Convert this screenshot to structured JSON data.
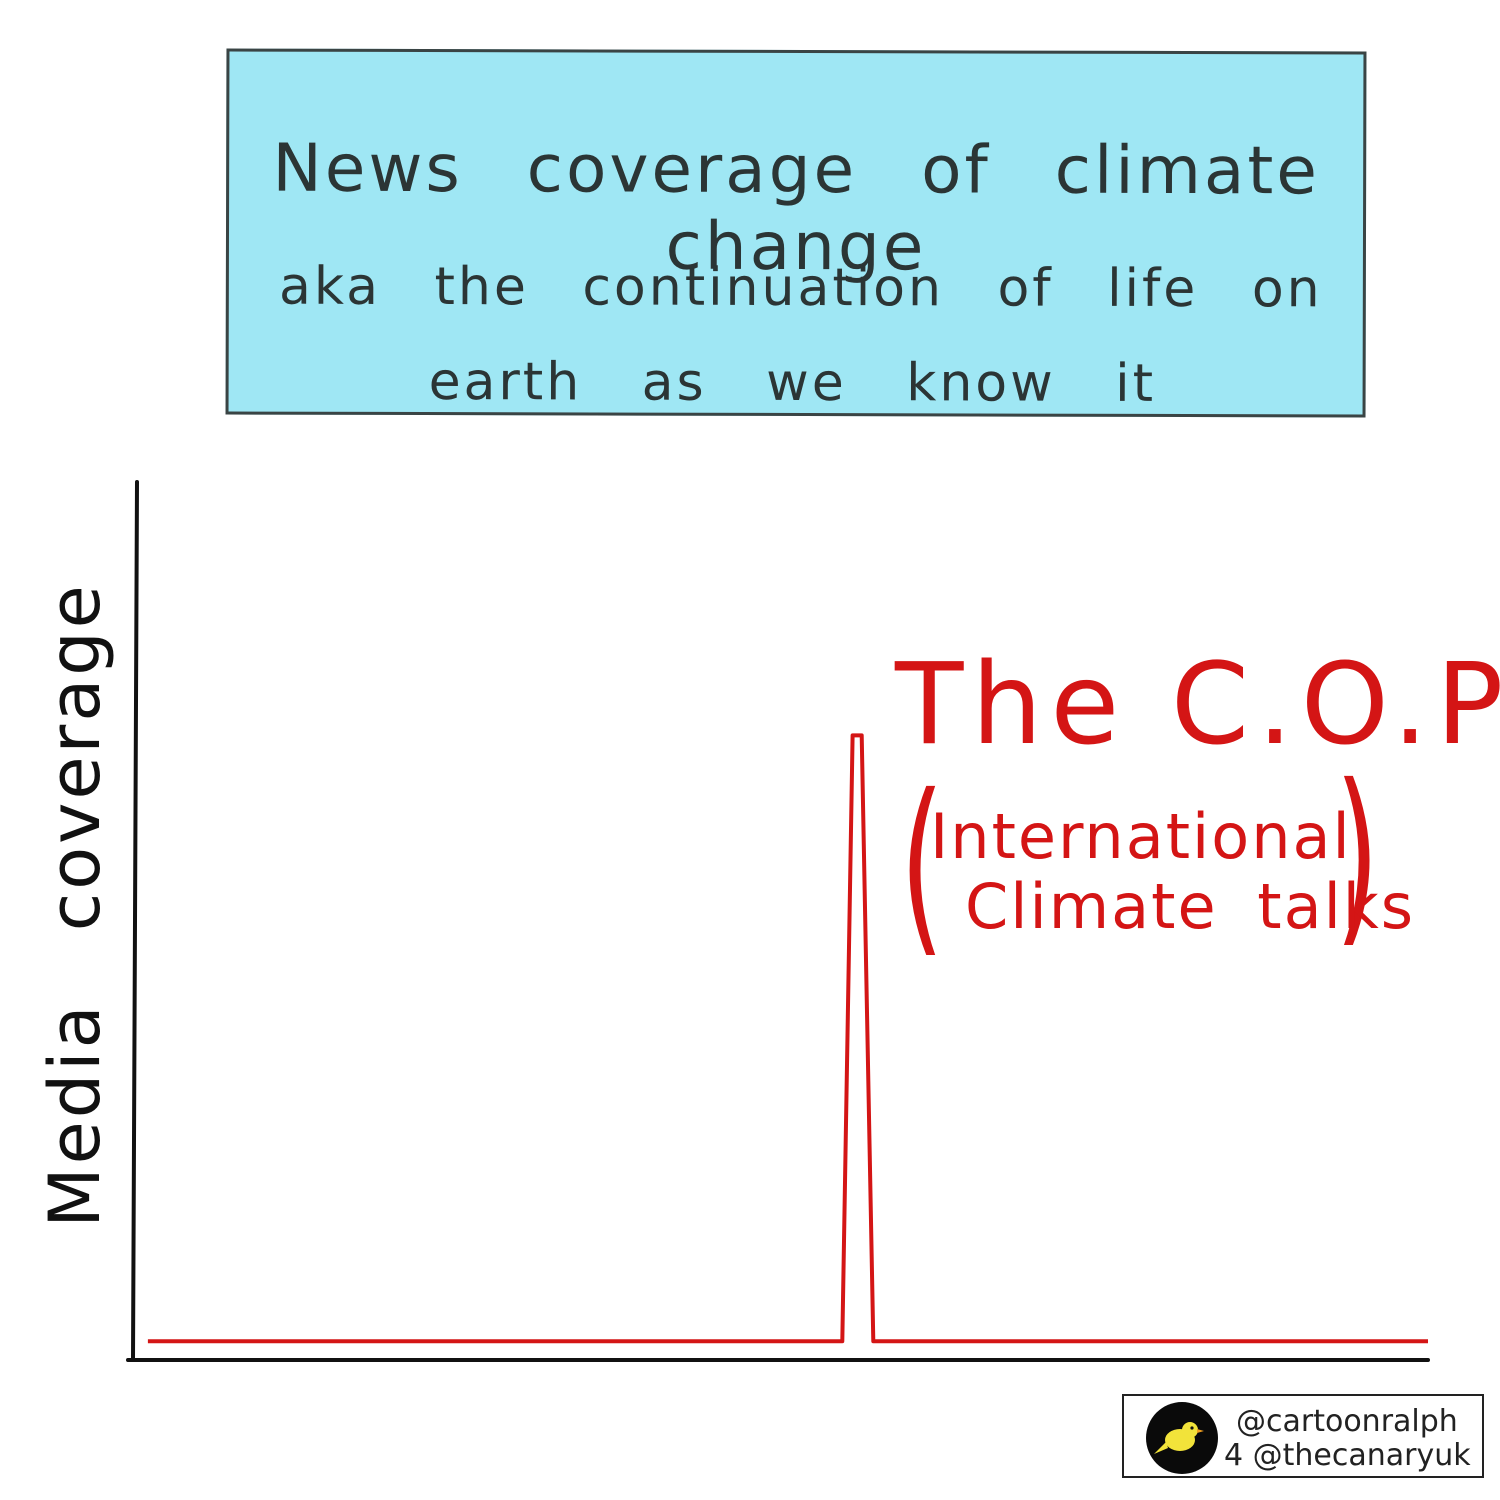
{
  "header": {
    "line1": "News coverage of climate change",
    "line2": "aka the continuation of life on",
    "line3": "earth as we know it"
  },
  "chart_data": {
    "type": "line",
    "title": "News coverage of climate change aka the continuation of life on earth as we know it",
    "xlabel": "",
    "ylabel": "Media coverage",
    "xlim": [
      0,
      100
    ],
    "ylim": [
      0,
      100
    ],
    "grid": false,
    "series": [
      {
        "values": [
          {
            "x": 1,
            "y": 1
          },
          {
            "x": 54.7,
            "y": 1
          },
          {
            "x": 55.5,
            "y": 70
          },
          {
            "x": 56.2,
            "y": 70
          },
          {
            "x": 57.1,
            "y": 1
          },
          {
            "x": 100,
            "y": 1
          }
        ]
      }
    ],
    "annotations": [
      "The C.O.P",
      "(International climate talks)"
    ],
    "line_color": "#d41515"
  },
  "annotation": {
    "main": "The C.O.P",
    "paren_open": "(",
    "paren_close": ")",
    "sub1": "International",
    "sub2": "Climate talks"
  },
  "credit": {
    "line1": "@cartoonralph",
    "line2": "4 @thecanaryuk",
    "logo_icon": "canary-bird-icon"
  }
}
